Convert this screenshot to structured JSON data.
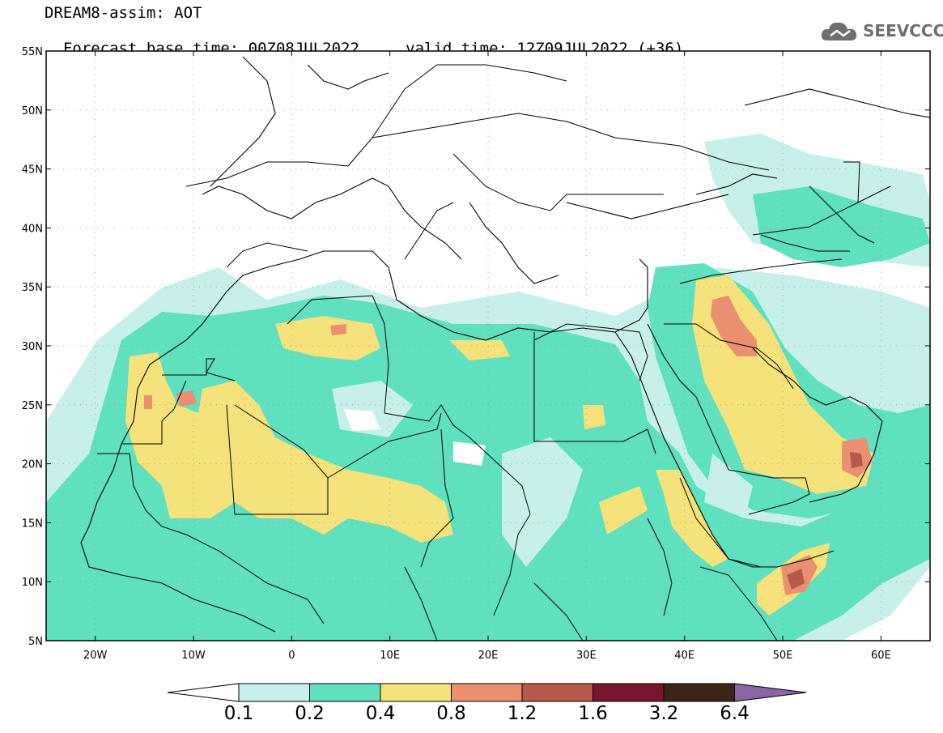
{
  "header": {
    "line1": "DREAM8-assim: AOT",
    "base_time": "Forecast base time: 00Z08JUL2022",
    "valid_time": "valid time: 12Z09JUL2022 (+36)"
  },
  "logo": {
    "text": "SEEVCCC",
    "icon": "cloud-icon"
  },
  "map": {
    "lon_range": [
      -25,
      65
    ],
    "lat_range": [
      5,
      55
    ],
    "lat_ticks": [
      "55N",
      "50N",
      "45N",
      "40N",
      "35N",
      "30N",
      "25N",
      "20N",
      "15N",
      "10N",
      "5N"
    ],
    "lon_ticks": [
      "20W",
      "10W",
      "0",
      "10E",
      "20E",
      "30E",
      "40E",
      "50E",
      "60E"
    ],
    "grid": true
  },
  "legend": {
    "levels": [
      "0.1",
      "0.2",
      "0.4",
      "0.8",
      "1.2",
      "1.6",
      "3.2",
      "6.4"
    ],
    "colors": [
      "#c8f0ea",
      "#5fe0be",
      "#f5e27a",
      "#ea9070",
      "#b55a4a",
      "#7a1530",
      "#3a2516",
      "#8c65a6"
    ],
    "under_color": "#ffffff"
  }
}
